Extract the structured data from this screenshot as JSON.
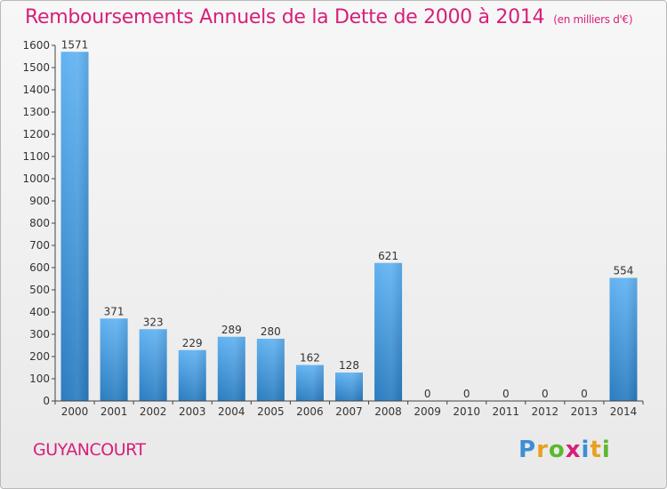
{
  "title": "Remboursements Annuels de la Dette de 2000 à 2014",
  "unit_note": "(en milliers d'€)",
  "city": "GUYANCOURT",
  "logo": {
    "text": "Proxiti",
    "colors": [
      "#3a8fd6",
      "#e8a020",
      "#5cb82e",
      "#d6207a",
      "#3a8fd6",
      "#e8a020",
      "#5cb82e"
    ]
  },
  "colors": {
    "title": "#d6207a",
    "bar_light": "#5daef0",
    "bar_dark": "#2b7fc3"
  },
  "chart_data": {
    "type": "bar",
    "categories": [
      "2000",
      "2001",
      "2002",
      "2003",
      "2004",
      "2005",
      "2006",
      "2007",
      "2008",
      "2009",
      "2010",
      "2011",
      "2012",
      "2013",
      "2014"
    ],
    "values": [
      1571,
      371,
      323,
      229,
      289,
      280,
      162,
      128,
      621,
      0,
      0,
      0,
      0,
      0,
      554
    ],
    "ylim": [
      0,
      1600
    ],
    "yticks": [
      0,
      100,
      200,
      300,
      400,
      500,
      600,
      700,
      800,
      900,
      1000,
      1100,
      1200,
      1300,
      1400,
      1500,
      1600
    ],
    "grid": false,
    "legend": "none"
  }
}
